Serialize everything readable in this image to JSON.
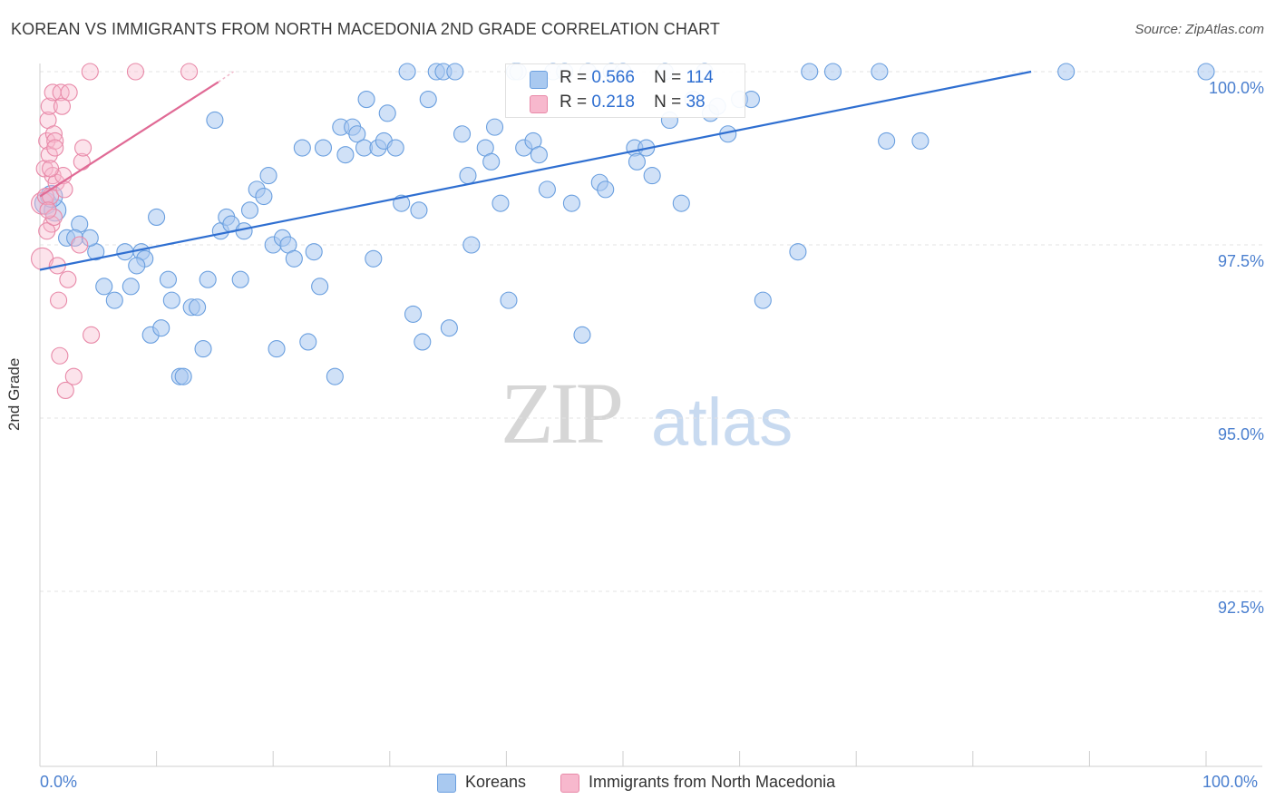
{
  "title": "KOREAN VS IMMIGRANTS FROM NORTH MACEDONIA 2ND GRADE CORRELATION CHART",
  "source": "Source: ZipAtlas.com",
  "watermark": {
    "part1": "ZIP",
    "part2": "atlas"
  },
  "stats": [
    {
      "r_label": "R =",
      "r_value": "0.566",
      "n_label": "N =",
      "n_value": "114",
      "color": "#a9c9f0",
      "border": "#6a9fdf"
    },
    {
      "r_label": "R =",
      "r_value": "0.218",
      "n_label": "N =",
      "n_value": "38",
      "color": "#f7b8cd",
      "border": "#e889a8"
    }
  ],
  "legend": [
    {
      "label": "Koreans",
      "color": "#a9c9f0",
      "border": "#6a9fdf"
    },
    {
      "label": "Immigrants from North Macedonia",
      "color": "#f7b8cd",
      "border": "#e889a8"
    }
  ],
  "chart_data": {
    "type": "scatter",
    "title": "KOREAN VS IMMIGRANTS FROM NORTH MACEDONIA 2ND GRADE CORRELATION CHART",
    "xlabel": "",
    "ylabel": "2nd Grade",
    "xlim": [
      0,
      100
    ],
    "ylim": [
      89.8,
      100.3
    ],
    "x_tick_labels": [
      "0.0%",
      "100.0%"
    ],
    "y_ticks": [
      {
        "value": 100.0,
        "label": "100.0%"
      },
      {
        "value": 97.5,
        "label": "97.5%"
      },
      {
        "value": 95.0,
        "label": "95.0%"
      },
      {
        "value": 92.5,
        "label": "92.5%"
      }
    ],
    "series": [
      {
        "name": "Koreans",
        "color": "#a9c9f0",
        "stroke": "#6a9fdf",
        "trend": {
          "x": [
            0,
            85
          ],
          "y": [
            97.14,
            100.0
          ],
          "color": "#2f6fd1"
        },
        "points": [
          [
            0.5,
            98.1
          ],
          [
            1.3,
            98.0
          ],
          [
            1.0,
            98.2
          ],
          [
            3.4,
            97.8
          ],
          [
            2.3,
            97.6
          ],
          [
            4.8,
            97.4
          ],
          [
            3.0,
            97.6
          ],
          [
            5.5,
            96.9
          ],
          [
            4.3,
            97.6
          ],
          [
            6.4,
            96.7
          ],
          [
            7.3,
            97.4
          ],
          [
            7.8,
            96.9
          ],
          [
            8.7,
            97.4
          ],
          [
            9.0,
            97.3
          ],
          [
            8.3,
            97.2
          ],
          [
            9.5,
            96.2
          ],
          [
            10.4,
            96.3
          ],
          [
            11.0,
            97.0
          ],
          [
            11.3,
            96.7
          ],
          [
            10.0,
            97.9
          ],
          [
            12.0,
            95.6
          ],
          [
            12.3,
            95.6
          ],
          [
            13.0,
            96.6
          ],
          [
            13.5,
            96.6
          ],
          [
            14.0,
            96.0
          ],
          [
            14.4,
            97.0
          ],
          [
            15.0,
            99.3
          ],
          [
            15.5,
            97.7
          ],
          [
            16.0,
            97.9
          ],
          [
            16.4,
            97.8
          ],
          [
            17.2,
            97.0
          ],
          [
            17.5,
            97.7
          ],
          [
            18.0,
            98.0
          ],
          [
            18.6,
            98.3
          ],
          [
            19.2,
            98.2
          ],
          [
            19.6,
            98.5
          ],
          [
            20.0,
            97.5
          ],
          [
            20.3,
            96.0
          ],
          [
            20.8,
            97.6
          ],
          [
            21.3,
            97.5
          ],
          [
            21.8,
            97.3
          ],
          [
            22.5,
            98.9
          ],
          [
            23.0,
            96.1
          ],
          [
            23.5,
            97.4
          ],
          [
            24.0,
            96.9
          ],
          [
            24.3,
            98.9
          ],
          [
            25.3,
            95.6
          ],
          [
            25.8,
            99.2
          ],
          [
            26.2,
            98.8
          ],
          [
            26.8,
            99.2
          ],
          [
            27.2,
            99.1
          ],
          [
            27.8,
            98.9
          ],
          [
            28.0,
            99.6
          ],
          [
            28.6,
            97.3
          ],
          [
            29.0,
            98.9
          ],
          [
            29.5,
            99.0
          ],
          [
            29.8,
            99.4
          ],
          [
            30.5,
            98.9
          ],
          [
            31.0,
            98.1
          ],
          [
            31.5,
            100.0
          ],
          [
            32.0,
            96.5
          ],
          [
            32.5,
            98.0
          ],
          [
            32.8,
            96.1
          ],
          [
            33.3,
            99.6
          ],
          [
            34.0,
            100.0
          ],
          [
            34.6,
            100.0
          ],
          [
            35.1,
            96.3
          ],
          [
            35.6,
            100.0
          ],
          [
            36.2,
            99.1
          ],
          [
            36.7,
            98.5
          ],
          [
            37.0,
            97.5
          ],
          [
            38.2,
            98.9
          ],
          [
            38.7,
            98.7
          ],
          [
            39.0,
            99.2
          ],
          [
            39.5,
            98.1
          ],
          [
            40.2,
            96.7
          ],
          [
            40.7,
            100.0
          ],
          [
            41.0,
            100.0
          ],
          [
            41.5,
            98.9
          ],
          [
            42.3,
            99.0
          ],
          [
            42.8,
            98.8
          ],
          [
            43.5,
            98.3
          ],
          [
            44.0,
            100.0
          ],
          [
            45.0,
            100.0
          ],
          [
            45.6,
            98.1
          ],
          [
            46.5,
            96.2
          ],
          [
            47.0,
            100.0
          ],
          [
            48.0,
            98.4
          ],
          [
            48.5,
            98.3
          ],
          [
            49.0,
            100.0
          ],
          [
            50.0,
            100.0
          ],
          [
            51.0,
            98.9
          ],
          [
            51.2,
            98.7
          ],
          [
            52.0,
            98.9
          ],
          [
            52.5,
            98.5
          ],
          [
            53.6,
            100.0
          ],
          [
            54.0,
            99.3
          ],
          [
            55.0,
            98.1
          ],
          [
            56.0,
            99.6
          ],
          [
            57.0,
            100.0
          ],
          [
            57.5,
            99.4
          ],
          [
            58.1,
            99.5
          ],
          [
            59.0,
            99.1
          ],
          [
            60.0,
            99.6
          ],
          [
            61.0,
            99.6
          ],
          [
            62.0,
            96.7
          ],
          [
            65.0,
            97.4
          ],
          [
            66.0,
            100.0
          ],
          [
            68.0,
            100.0
          ],
          [
            72.0,
            100.0
          ],
          [
            72.6,
            99.0
          ],
          [
            75.5,
            99.0
          ],
          [
            88.0,
            100.0
          ],
          [
            100.0,
            100.0
          ]
        ]
      },
      {
        "name": "Immigrants from North Macedonia",
        "color": "#f7b8cd",
        "stroke": "#e889a8",
        "trend": {
          "x": [
            0,
            15.3
          ],
          "y": [
            98.2,
            99.85
          ],
          "color": "#e06a95",
          "dash_to": [
            16.6,
            100.0
          ]
        },
        "points": [
          [
            0.2,
            97.3
          ],
          [
            0.2,
            98.1
          ],
          [
            0.5,
            98.2
          ],
          [
            0.4,
            98.6
          ],
          [
            0.6,
            99.0
          ],
          [
            0.7,
            99.3
          ],
          [
            0.8,
            99.5
          ],
          [
            0.8,
            98.8
          ],
          [
            0.9,
            98.2
          ],
          [
            1.0,
            97.8
          ],
          [
            1.1,
            99.7
          ],
          [
            1.1,
            98.5
          ],
          [
            1.2,
            99.1
          ],
          [
            1.3,
            99.0
          ],
          [
            1.3,
            98.9
          ],
          [
            1.4,
            98.4
          ],
          [
            1.5,
            97.2
          ],
          [
            1.6,
            96.7
          ],
          [
            1.7,
            95.9
          ],
          [
            1.8,
            99.7
          ],
          [
            1.9,
            99.5
          ],
          [
            2.0,
            98.5
          ],
          [
            2.1,
            98.3
          ],
          [
            2.2,
            95.4
          ],
          [
            2.4,
            97.0
          ],
          [
            2.5,
            99.7
          ],
          [
            2.9,
            95.6
          ],
          [
            3.4,
            97.5
          ],
          [
            3.6,
            98.7
          ],
          [
            3.7,
            98.9
          ],
          [
            4.4,
            96.2
          ],
          [
            4.3,
            100.0
          ],
          [
            8.2,
            100.0
          ],
          [
            12.8,
            100.0
          ],
          [
            0.6,
            97.7
          ],
          [
            0.9,
            98.6
          ],
          [
            1.2,
            97.9
          ],
          [
            0.7,
            98.0
          ]
        ]
      }
    ]
  }
}
